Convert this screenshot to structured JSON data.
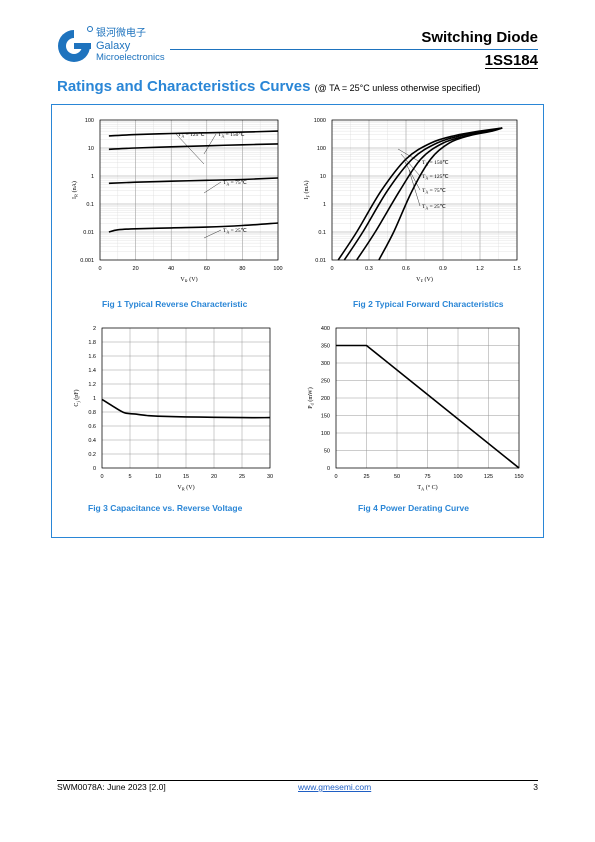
{
  "header": {
    "logo_cn": "银河微电子",
    "logo_l1": "Galaxy",
    "logo_l2": "Microelectronics",
    "title": "Switching Diode",
    "part": "1SS184"
  },
  "section": {
    "title": "Ratings and Characteristics Curves",
    "note": "(@ TA = 25°C unless otherwise specified)"
  },
  "captions": {
    "fig1": "Fig 1    Typical Reverse Characteristic",
    "fig2": "Fig 2    Typical Forward Characteristics",
    "fig3": "Fig 3    Capacitance vs. Reverse Voltage",
    "fig4": "Fig 4    Power Derating Curve"
  },
  "footer": {
    "doc": "SWM0078A: June 2023 [2.0]",
    "url": "www.gmesemi.com",
    "page": "3"
  },
  "chart_data": [
    {
      "id": "fig1",
      "type": "line",
      "xlabel": "VR (V)",
      "ylabel": "IR (nA)",
      "yscale": "log",
      "xlim": [
        0,
        100
      ],
      "ylim": [
        0.001,
        100
      ],
      "xticks": [
        "0",
        "20",
        "40",
        "60",
        "80",
        "100"
      ],
      "yticks": [
        "0.001",
        "0.01",
        "0.1",
        "1",
        "10",
        "100"
      ],
      "series": [
        {
          "name": "TA = 150℃",
          "x": [
            5,
            20,
            40,
            60,
            80,
            100
          ],
          "y": [
            27,
            30,
            33,
            35,
            37,
            40
          ]
        },
        {
          "name": "TA = 125℃",
          "x": [
            5,
            20,
            40,
            60,
            80,
            100
          ],
          "y": [
            9,
            10,
            11,
            12,
            13,
            14
          ]
        },
        {
          "name": "TA = 75℃",
          "x": [
            5,
            20,
            40,
            60,
            80,
            100
          ],
          "y": [
            0.55,
            0.6,
            0.65,
            0.7,
            0.75,
            0.85
          ]
        },
        {
          "name": "TA = 25℃",
          "x": [
            5,
            10,
            20,
            40,
            60,
            80,
            100
          ],
          "y": [
            0.01,
            0.012,
            0.013,
            0.014,
            0.015,
            0.017,
            0.021
          ]
        }
      ]
    },
    {
      "id": "fig2",
      "type": "line",
      "xlabel": "VF (V)",
      "ylabel": "IF (mA)",
      "yscale": "log",
      "xlim": [
        0,
        1.5
      ],
      "ylim": [
        0.01,
        1000
      ],
      "xticks": [
        "0",
        "0.3",
        "0.6",
        "0.9",
        "1.2",
        "1.5"
      ],
      "yticks": [
        "0.01",
        "0.1",
        "1",
        "10",
        "100",
        "1000"
      ],
      "series": [
        {
          "name": "TA = 150℃",
          "x": [
            0.05,
            0.2,
            0.4,
            0.6,
            0.8,
            1.0,
            1.2,
            1.38
          ],
          "y": [
            0.01,
            0.1,
            3,
            40,
            150,
            280,
            400,
            520
          ]
        },
        {
          "name": "TA = 125℃",
          "x": [
            0.1,
            0.25,
            0.45,
            0.65,
            0.85,
            1.05,
            1.25,
            1.38
          ],
          "y": [
            0.01,
            0.1,
            3,
            40,
            150,
            280,
            400,
            520
          ]
        },
        {
          "name": "TA = 75℃",
          "x": [
            0.2,
            0.35,
            0.55,
            0.72,
            0.9,
            1.1,
            1.28,
            1.38
          ],
          "y": [
            0.01,
            0.1,
            3,
            40,
            150,
            280,
            400,
            520
          ]
        },
        {
          "name": "TA = 25℃",
          "x": [
            0.38,
            0.5,
            0.65,
            0.8,
            0.95,
            1.12,
            1.3,
            1.38
          ],
          "y": [
            0.01,
            0.1,
            3,
            40,
            150,
            280,
            400,
            520
          ]
        }
      ]
    },
    {
      "id": "fig3",
      "type": "line",
      "xlabel": "VR (V)",
      "ylabel": "Cj (pF)",
      "xlim": [
        0,
        30
      ],
      "ylim": [
        0,
        2
      ],
      "xticks": [
        "0",
        "5",
        "10",
        "15",
        "20",
        "25",
        "30"
      ],
      "yticks": [
        "0",
        "0.2",
        "0.4",
        "0.6",
        "0.8",
        "1",
        "1.2",
        "1.4",
        "1.6",
        "1.8",
        "2"
      ],
      "series": [
        {
          "x": [
            0,
            2,
            4,
            6,
            8,
            10,
            15,
            20,
            25,
            30
          ],
          "y": [
            0.98,
            0.88,
            0.79,
            0.77,
            0.75,
            0.74,
            0.73,
            0.725,
            0.72,
            0.72
          ]
        }
      ]
    },
    {
      "id": "fig4",
      "type": "line",
      "xlabel": "TA (°C)",
      "ylabel": "Pd (mW)",
      "xlim": [
        0,
        150
      ],
      "ylim": [
        0,
        400
      ],
      "xticks": [
        "0",
        "25",
        "50",
        "75",
        "100",
        "125",
        "150"
      ],
      "yticks": [
        "0",
        "50",
        "100",
        "150",
        "200",
        "250",
        "300",
        "350",
        "400"
      ],
      "series": [
        {
          "x": [
            0,
            25,
            150
          ],
          "y": [
            350,
            350,
            0
          ]
        }
      ]
    }
  ]
}
